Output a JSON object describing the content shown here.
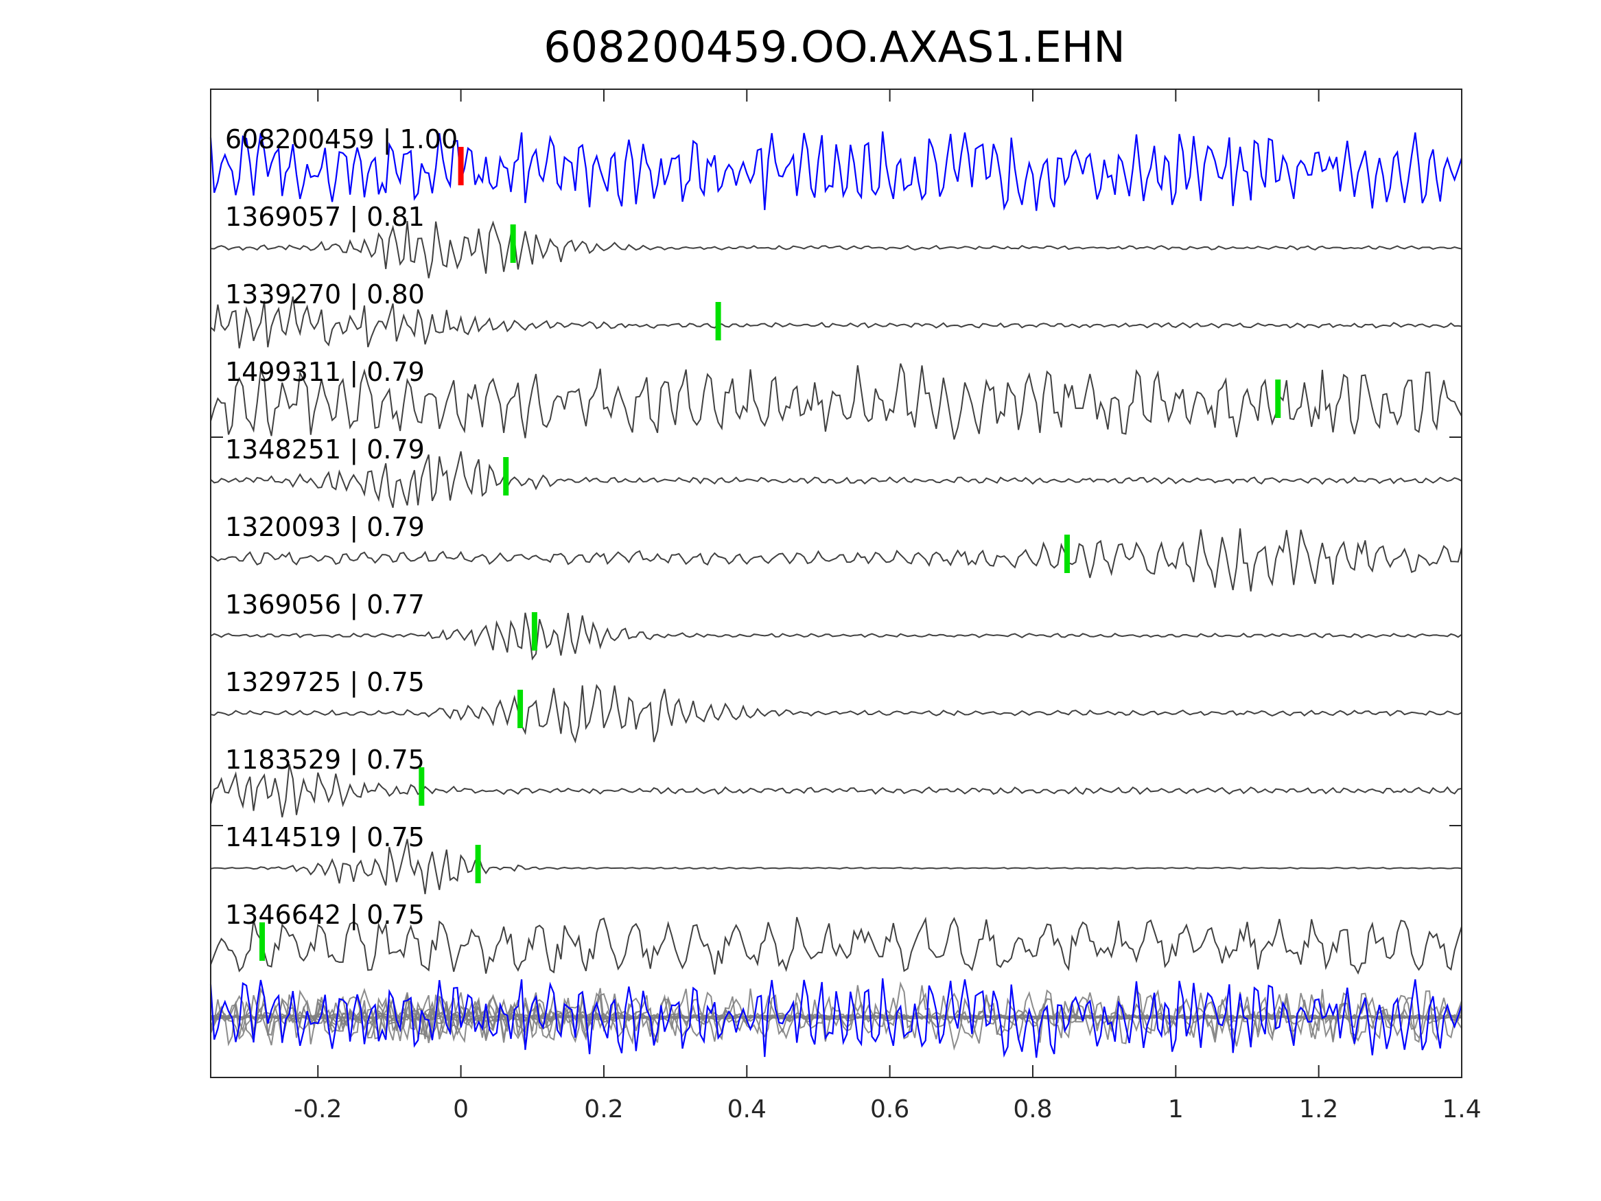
{
  "chart_data": {
    "type": "line",
    "title": "608200459.OO.AXAS1.EHN",
    "xlabel": "",
    "ylabel": "",
    "xlim": [
      -0.35,
      1.4
    ],
    "xticks": [
      -0.2,
      0,
      0.2,
      0.4,
      0.6,
      0.8,
      1,
      1.2,
      1.4
    ],
    "xtick_labels": [
      "-0.2",
      "0",
      "0.2",
      "0.4",
      "0.6",
      "0.8",
      "1",
      "1.2",
      "1.4"
    ],
    "grid": false,
    "series": [
      {
        "name": "608200459 | 1.00",
        "id": "608200459",
        "cc": 1.0,
        "pick": 0.0,
        "color": "#0000ff",
        "pick_color": "#ff0000"
      },
      {
        "name": "1369057 | 0.81",
        "id": "1369057",
        "cc": 0.81,
        "pick": 0.073,
        "color": "#404040",
        "pick_color": "#00e000"
      },
      {
        "name": "1339270 | 0.80",
        "id": "1339270",
        "cc": 0.8,
        "pick": 0.36,
        "color": "#404040",
        "pick_color": "#00e000"
      },
      {
        "name": "1499311 | 0.79",
        "id": "1499311",
        "cc": 0.79,
        "pick": 1.143,
        "color": "#404040",
        "pick_color": "#00e000"
      },
      {
        "name": "1348251 | 0.79",
        "id": "1348251",
        "cc": 0.79,
        "pick": 0.063,
        "color": "#404040",
        "pick_color": "#00e000"
      },
      {
        "name": "1320093 | 0.79",
        "id": "1320093",
        "cc": 0.79,
        "pick": 0.848,
        "color": "#404040",
        "pick_color": "#00e000"
      },
      {
        "name": "1369056 | 0.77",
        "id": "1369056",
        "cc": 0.77,
        "pick": 0.103,
        "color": "#404040",
        "pick_color": "#00e000"
      },
      {
        "name": "1329725 | 0.75",
        "id": "1329725",
        "cc": 0.75,
        "pick": 0.083,
        "color": "#404040",
        "pick_color": "#00e000"
      },
      {
        "name": "1183529 | 0.75",
        "id": "1183529",
        "cc": 0.75,
        "pick": -0.055,
        "color": "#404040",
        "pick_color": "#00e000"
      },
      {
        "name": "1414519 | 0.75",
        "id": "1414519",
        "cc": 0.75,
        "pick": 0.024,
        "color": "#404040",
        "pick_color": "#00e000"
      },
      {
        "name": "1346642 | 0.75",
        "id": "1346642",
        "cc": 0.75,
        "pick": -0.278,
        "color": "#404040",
        "pick_color": "#00e000"
      }
    ],
    "overlay": {
      "description_color": "#808080",
      "template_color": "#0000ff"
    }
  }
}
